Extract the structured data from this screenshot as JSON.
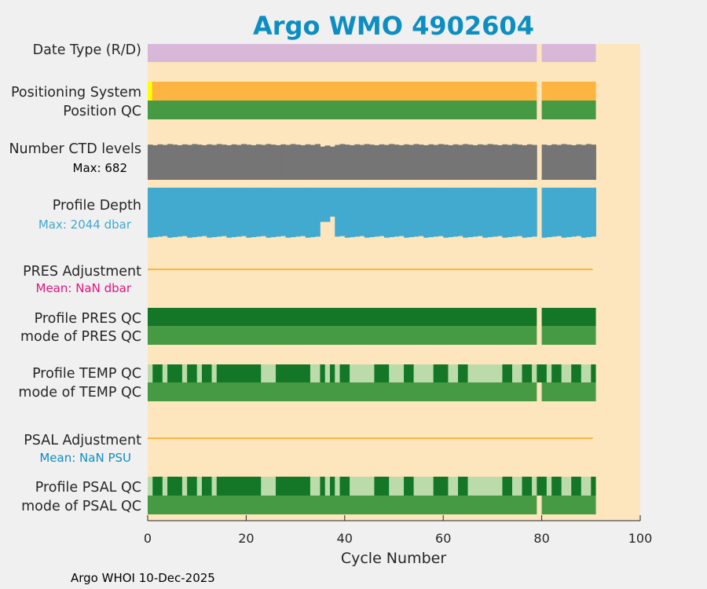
{
  "colors": {
    "figure_bg": "#f0f0f0",
    "plot_bg": "#fde6bd",
    "title": "#0c8ec2",
    "date_type": "#d8b8d8",
    "positioning": "#fdb440",
    "positioning_first": "#ffff00",
    "qc_good": "#479a44",
    "qc_dark": "#137727",
    "qc_light": "#bcdbaa",
    "ctd": "#757575",
    "depth": "#42a9cf",
    "adjust_line": "#fdb440",
    "pres_mean": "#e0137d",
    "psal_mean": "#0c8ec2",
    "footer": "#000000"
  },
  "chart_data": {
    "type": "status-timeline",
    "title": "Argo WMO 4902604",
    "xlabel": "Cycle Number",
    "xlim": [
      0,
      100
    ],
    "xticks": [
      0,
      20,
      40,
      60,
      80,
      100
    ],
    "xtick_labels": [
      "0",
      "20",
      "40",
      "60",
      "80",
      "100"
    ],
    "cycles_range": [
      1,
      91
    ],
    "missing_cycles": [
      80
    ],
    "rows": [
      {
        "key": "date_type",
        "label": "Date Type (R/D)"
      },
      {
        "key": "positioning",
        "label": "Positioning System",
        "note": "cycle 1 differs"
      },
      {
        "key": "position_qc",
        "label": "Position QC"
      },
      {
        "key": "ctd_levels",
        "label": "Number CTD levels",
        "sublabel": "Max: 682",
        "max": 682
      },
      {
        "key": "profile_depth",
        "label": "Profile Depth",
        "sublabel": "Max: 2044 dbar",
        "max_dbar": 2044
      },
      {
        "key": "pres_adjustment",
        "label": "PRES Adjustment",
        "sublabel": "Mean:  NaN dbar"
      },
      {
        "key": "profile_pres_qc",
        "label": "Profile PRES QC"
      },
      {
        "key": "mode_pres_qc",
        "label": "mode of PRES QC"
      },
      {
        "key": "profile_temp_qc",
        "label": "Profile TEMP QC"
      },
      {
        "key": "mode_temp_qc",
        "label": "mode of TEMP QC"
      },
      {
        "key": "psal_adjustment",
        "label": "PSAL Adjustment",
        "sublabel": "Mean:  NaN PSU"
      },
      {
        "key": "profile_psal_qc",
        "label": "Profile PSAL QC"
      },
      {
        "key": "mode_psal_qc",
        "label": "mode of PSAL QC"
      }
    ],
    "profile_qc_dark_segments": [
      [
        2,
        3
      ],
      [
        5,
        7
      ],
      [
        9,
        10
      ],
      [
        12,
        13
      ],
      [
        15,
        23
      ],
      [
        27,
        33
      ],
      [
        36,
        36
      ],
      [
        38,
        38
      ],
      [
        40,
        41
      ],
      [
        47,
        49
      ],
      [
        53,
        54
      ],
      [
        59,
        61
      ],
      [
        64,
        65
      ],
      [
        73,
        74
      ],
      [
        77,
        78
      ],
      [
        80,
        81
      ],
      [
        83,
        84
      ],
      [
        87,
        88
      ],
      [
        91,
        91
      ]
    ],
    "ctd_levels_fraction_by_cycle": {
      "default": 0.97,
      "dips": {
        "36": 0.9,
        "37": 0.93,
        "38": 0.9
      }
    },
    "profile_depth_fraction_by_cycle": {
      "default": 0.92,
      "dips": {
        "36": 0.65,
        "37": 0.65,
        "38": 0.55
      }
    }
  },
  "footer": {
    "text": "Argo WHOI 10-Dec-2025"
  }
}
